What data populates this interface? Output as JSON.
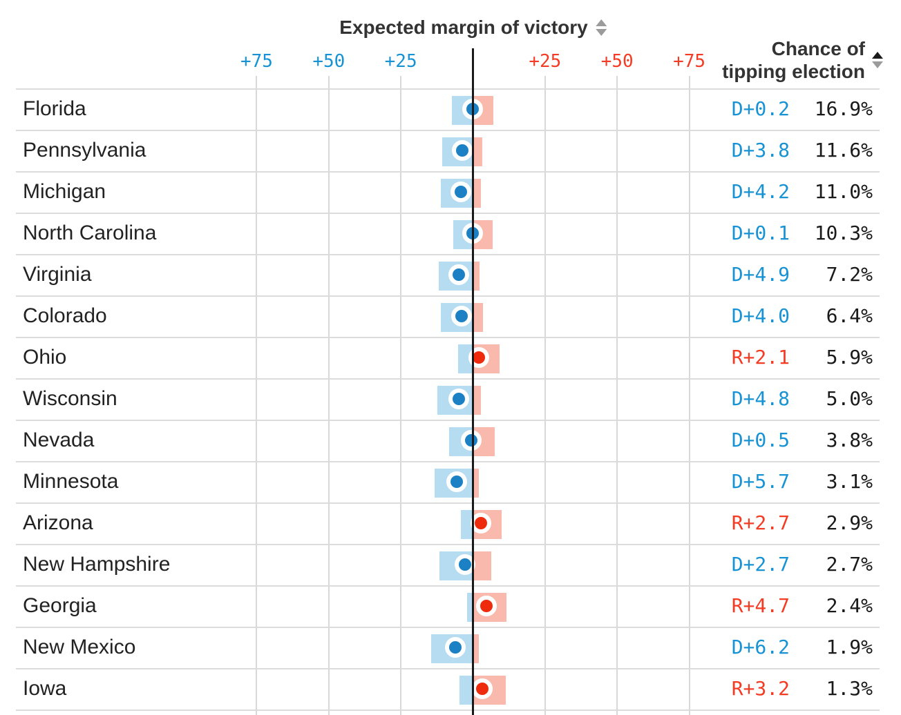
{
  "header": {
    "margin_title": "Expected margin of victory",
    "chance_title": "Chance of\ntipping election",
    "margin_sort": {
      "up_active": false,
      "down_active": false
    },
    "chance_sort": {
      "up_active": true,
      "down_active": false
    }
  },
  "colors": {
    "blue_text": "#1793d5",
    "red_text": "#f43b24",
    "dot_blue": "#1b80c4",
    "dot_red": "#ee2b0d",
    "bar_blue": "#b5dcf1",
    "bar_red": "#f9b9ac",
    "gridline": "#d8d8d8",
    "divider": "#dcdcdc"
  },
  "chart_data": {
    "type": "table",
    "title": "Expected margin of victory",
    "x_axis": {
      "range_points": [
        -84,
        84
      ],
      "gridlines": true,
      "ticks": [
        {
          "value": -75,
          "label": "+75"
        },
        {
          "value": -50,
          "label": "+50"
        },
        {
          "value": -25,
          "label": "+25"
        },
        {
          "value": 25,
          "label": "+25"
        },
        {
          "value": 50,
          "label": "+50"
        },
        {
          "value": 75,
          "label": "+75"
        }
      ]
    },
    "sign_convention": "negative = Democratic margin, positive = Republican margin",
    "rows": [
      {
        "state": "Florida",
        "margin_label": "D+0.2",
        "margin_party": "D",
        "margin_value": 0.2,
        "interval": [
          -7.3,
          7.1
        ],
        "chance": "16.9%"
      },
      {
        "state": "Pennsylvania",
        "margin_label": "D+3.8",
        "margin_party": "D",
        "margin_value": 3.8,
        "interval": [
          -10.7,
          3.2
        ],
        "chance": "11.6%"
      },
      {
        "state": "Michigan",
        "margin_label": "D+4.2",
        "margin_party": "D",
        "margin_value": 4.2,
        "interval": [
          -11.1,
          2.8
        ],
        "chance": "11.0%"
      },
      {
        "state": "North Carolina",
        "margin_label": "D+0.1",
        "margin_party": "D",
        "margin_value": 0.1,
        "interval": [
          -6.8,
          6.8
        ],
        "chance": "10.3%"
      },
      {
        "state": "Virginia",
        "margin_label": "D+4.9",
        "margin_party": "D",
        "margin_value": 4.9,
        "interval": [
          -11.9,
          2.3
        ],
        "chance": "7.2%"
      },
      {
        "state": "Colorado",
        "margin_label": "D+4.0",
        "margin_party": "D",
        "margin_value": 4.0,
        "interval": [
          -11.1,
          3.5
        ],
        "chance": "6.4%"
      },
      {
        "state": "Ohio",
        "margin_label": "R+2.1",
        "margin_party": "R",
        "margin_value": 2.1,
        "interval": [
          -5.2,
          9.3
        ],
        "chance": "5.9%"
      },
      {
        "state": "Wisconsin",
        "margin_label": "D+4.8",
        "margin_party": "D",
        "margin_value": 4.8,
        "interval": [
          -12.3,
          2.8
        ],
        "chance": "5.0%"
      },
      {
        "state": "Nevada",
        "margin_label": "D+0.5",
        "margin_party": "D",
        "margin_value": 0.5,
        "interval": [
          -8.3,
          7.5
        ],
        "chance": "3.8%"
      },
      {
        "state": "Minnesota",
        "margin_label": "D+5.7",
        "margin_party": "D",
        "margin_value": 5.7,
        "interval": [
          -13.3,
          2.1
        ],
        "chance": "3.1%"
      },
      {
        "state": "Arizona",
        "margin_label": "R+2.7",
        "margin_party": "R",
        "margin_value": 2.7,
        "interval": [
          -4.2,
          9.9
        ],
        "chance": "2.9%"
      },
      {
        "state": "New Hampshire",
        "margin_label": "D+2.7",
        "margin_party": "D",
        "margin_value": 2.7,
        "interval": [
          -11.6,
          6.3
        ],
        "chance": "2.7%"
      },
      {
        "state": "Georgia",
        "margin_label": "R+4.7",
        "margin_party": "R",
        "margin_value": 4.7,
        "interval": [
          -2.0,
          11.7
        ],
        "chance": "2.4%"
      },
      {
        "state": "New Mexico",
        "margin_label": "D+6.2",
        "margin_party": "D",
        "margin_value": 6.2,
        "interval": [
          -14.4,
          2.0
        ],
        "chance": "1.9%"
      },
      {
        "state": "Iowa",
        "margin_label": "R+3.2",
        "margin_party": "R",
        "margin_value": 3.2,
        "interval": [
          -4.7,
          11.4
        ],
        "chance": "1.3%"
      }
    ]
  }
}
